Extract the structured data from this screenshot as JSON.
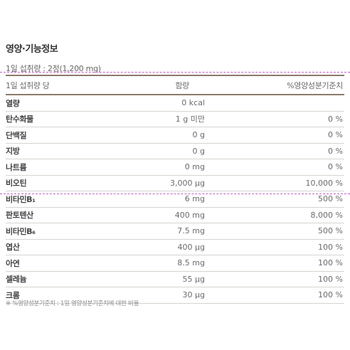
{
  "title": "영양·기능정보",
  "serving": "1일 섭취량 : 2정(1,200 mg)",
  "header": {
    "col_name": "1일 섭취량 당",
    "col_amount": "함량",
    "col_dv": "%영양성분기준치"
  },
  "rows": [
    {
      "name": "열량",
      "amount": "0 kcal",
      "dv": ""
    },
    {
      "name": "탄수화물",
      "amount": "1 g 미만",
      "dv": "0 %"
    },
    {
      "name": "단백질",
      "amount": "0 g",
      "dv": "0 %"
    },
    {
      "name": "지방",
      "amount": "0 g",
      "dv": "0 %"
    },
    {
      "name": "나트륨",
      "amount": "0 mg",
      "dv": "0 %"
    },
    {
      "name": "비오틴",
      "amount": "3,000 μg",
      "dv": "10,000 %"
    },
    {
      "name": "비타민B₁",
      "amount": "6 mg",
      "dv": "500 %"
    },
    {
      "name": "판토텐산",
      "amount": "400 mg",
      "dv": "8,000 %"
    },
    {
      "name": "비타민B₆",
      "amount": "7.5 mg",
      "dv": "500 %"
    },
    {
      "name": "엽산",
      "amount": "400 μg",
      "dv": "100 %"
    },
    {
      "name": "아연",
      "amount": "8.5 mg",
      "dv": "100 %"
    },
    {
      "name": "셀레늄",
      "amount": "55 μg",
      "dv": "100 %"
    },
    {
      "name": "크롬",
      "amount": "30 μg",
      "dv": "100 %"
    }
  ],
  "footnote": "※ %영양성분기준치 : 1일 영양성분기준치에 대한 비율",
  "colors": {
    "rule": "#8c7b6a",
    "guide": "#c060c8"
  }
}
